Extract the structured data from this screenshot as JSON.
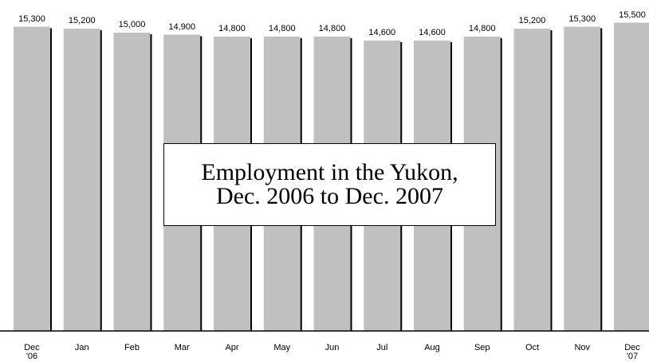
{
  "chart_data": {
    "type": "bar",
    "title": "Employment in the Yukon,\nDec. 2006 to Dec. 2007",
    "categories": [
      "Dec\n'06",
      "Jan",
      "Feb",
      "Mar",
      "Apr",
      "May",
      "Jun",
      "Jul",
      "Aug",
      "Sep",
      "Oct",
      "Nov",
      "Dec\n'07"
    ],
    "values": [
      15300,
      15200,
      15000,
      14900,
      14800,
      14800,
      14800,
      14600,
      14600,
      14800,
      15200,
      15300,
      15500
    ],
    "value_labels": [
      "15,300",
      "15,200",
      "15,000",
      "14,900",
      "14,800",
      "14,800",
      "14,800",
      "14,600",
      "14,600",
      "14,800",
      "15,200",
      "15,300",
      "15,500"
    ],
    "color": "#c0c0c0",
    "ylim": [
      0,
      16000
    ]
  }
}
